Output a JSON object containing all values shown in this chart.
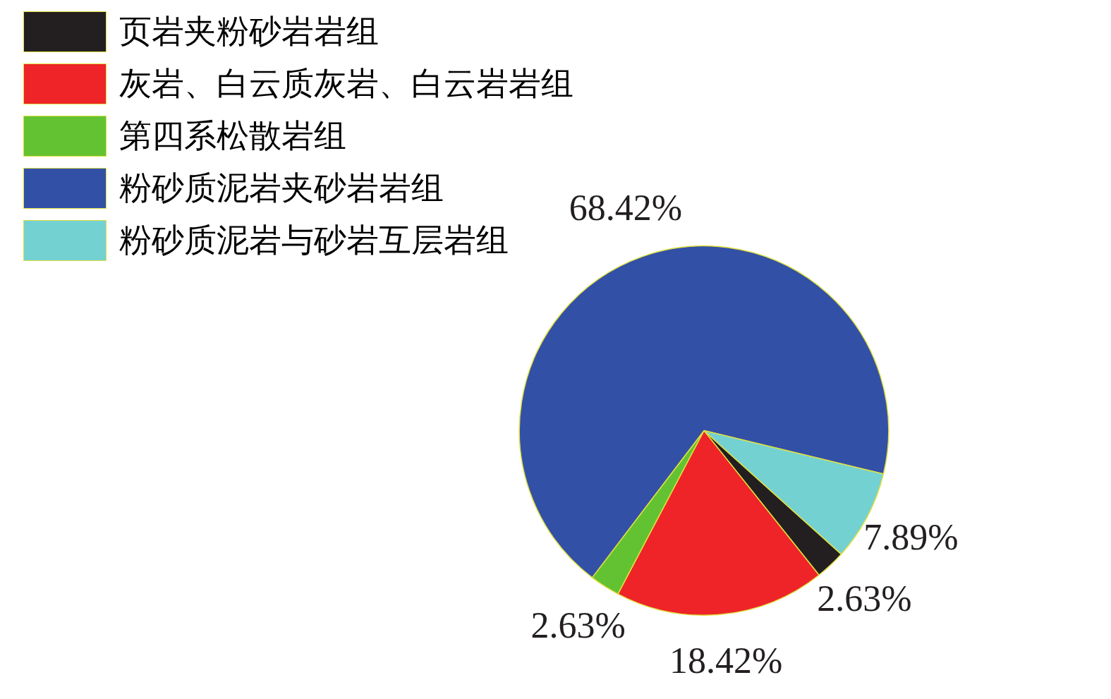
{
  "chart_data": {
    "type": "pie",
    "categories": [
      "页岩夹粉砂岩岩组",
      "灰岩、白云质灰岩、白云岩岩组",
      "第四系松散岩组",
      "粉砂质泥岩夹砂岩岩组",
      "粉砂质泥岩与砂岩互层岩组"
    ],
    "values": [
      2.63,
      18.42,
      2.63,
      68.42,
      7.89
    ],
    "value_labels": [
      "2.63%",
      "18.42%",
      "2.63%",
      "68.42%",
      "7.89%"
    ],
    "colors": [
      "#231f20",
      "#ee2428",
      "#63c232",
      "#3350a7",
      "#74d1d2"
    ],
    "legend": "top left"
  }
}
